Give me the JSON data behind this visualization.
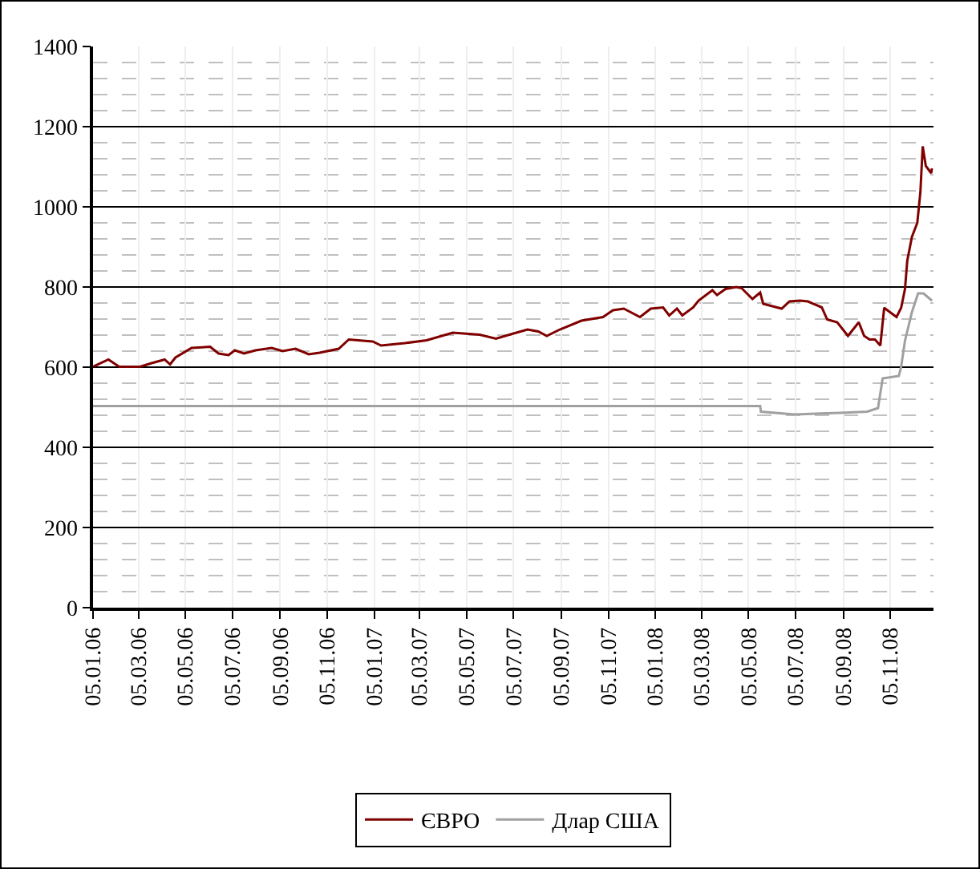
{
  "chart_data": {
    "type": "line",
    "legend": "bottom",
    "grid": true,
    "line_style": "solid",
    "marker": "none",
    "xlim": [
      "2006-01-05",
      "2008-12-31"
    ],
    "xticks": [
      {
        "value": "2006-01-05",
        "label": "05.01.06"
      },
      {
        "value": "2006-03-05",
        "label": "05.03.06"
      },
      {
        "value": "2006-05-05",
        "label": "05.05.06"
      },
      {
        "value": "2006-07-05",
        "label": "05.07.06"
      },
      {
        "value": "2006-09-05",
        "label": "05.09.06"
      },
      {
        "value": "2006-11-05",
        "label": "05.11.06"
      },
      {
        "value": "2007-01-05",
        "label": "05.01.07"
      },
      {
        "value": "2007-03-05",
        "label": "05.03.07"
      },
      {
        "value": "2007-05-05",
        "label": "05.05.07"
      },
      {
        "value": "2007-07-05",
        "label": "05.07.07"
      },
      {
        "value": "2007-09-05",
        "label": "05.09.07"
      },
      {
        "value": "2007-11-05",
        "label": "05.11.07"
      },
      {
        "value": "2008-01-05",
        "label": "05.01.08"
      },
      {
        "value": "2008-03-05",
        "label": "05.03.08"
      },
      {
        "value": "2008-05-05",
        "label": "05.05.08"
      },
      {
        "value": "2008-07-05",
        "label": "05.07.08"
      },
      {
        "value": "2008-09-05",
        "label": "05.09.08"
      },
      {
        "value": "2008-11-05",
        "label": "05.11.08"
      }
    ],
    "ylim": [
      0,
      1400
    ],
    "yticks": [
      0,
      200,
      400,
      600,
      800,
      1000,
      1200,
      1400
    ],
    "series": [
      {
        "name": "ЄВРО",
        "color": "#800000",
        "x": [
          "2006-01-05",
          "2006-01-25",
          "2006-02-08",
          "2006-03-07",
          "2006-03-22",
          "2006-04-08",
          "2006-04-15",
          "2006-04-22",
          "2006-05-13",
          "2006-06-06",
          "2006-06-17",
          "2006-06-30",
          "2006-07-08",
          "2006-07-20",
          "2006-08-04",
          "2006-08-25",
          "2006-09-08",
          "2006-09-25",
          "2006-10-12",
          "2006-10-26",
          "2006-11-20",
          "2006-12-03",
          "2007-01-03",
          "2007-01-14",
          "2007-02-14",
          "2007-03-14",
          "2007-04-17",
          "2007-05-22",
          "2007-06-12",
          "2007-07-03",
          "2007-07-23",
          "2007-08-06",
          "2007-08-17",
          "2007-09-03",
          "2007-10-01",
          "2007-10-29",
          "2007-11-11",
          "2007-11-25",
          "2007-12-16",
          "2007-12-30",
          "2008-01-15",
          "2008-01-23",
          "2008-02-02",
          "2008-02-09",
          "2008-02-23",
          "2008-03-01",
          "2008-03-19",
          "2008-03-25",
          "2008-04-05",
          "2008-04-19",
          "2008-04-26",
          "2008-05-10",
          "2008-05-20",
          "2008-05-24",
          "2008-06-07",
          "2008-06-17",
          "2008-06-27",
          "2008-07-11",
          "2008-07-21",
          "2008-08-08",
          "2008-08-15",
          "2008-08-28",
          "2008-09-11",
          "2008-09-25",
          "2008-10-02",
          "2008-10-09",
          "2008-10-16",
          "2008-10-23",
          "2008-10-28",
          "2008-11-13",
          "2008-11-19",
          "2008-11-24",
          "2008-11-27",
          "2008-12-03",
          "2008-12-10",
          "2008-12-14",
          "2008-12-17",
          "2008-12-21",
          "2008-12-28",
          "2008-12-29"
        ],
        "values": [
          601,
          619,
          601,
          601,
          610,
          619,
          607,
          624,
          648,
          651,
          634,
          630,
          642,
          634,
          642,
          648,
          640,
          646,
          632,
          636,
          646,
          669,
          664,
          654,
          660,
          667,
          686,
          681,
          671,
          683,
          694,
          689,
          678,
          694,
          716,
          725,
          742,
          746,
          725,
          746,
          749,
          729,
          746,
          729,
          749,
          766,
          792,
          780,
          795,
          800,
          797,
          770,
          786,
          758,
          751,
          746,
          764,
          766,
          764,
          749,
          719,
          712,
          678,
          712,
          678,
          669,
          669,
          654,
          748,
          725,
          748,
          795,
          866,
          925,
          960,
          1037,
          1151,
          1102,
          1084,
          1096
        ]
      },
      {
        "name": "Длар США",
        "color": "#a0a0a0",
        "x": [
          "2006-01-05",
          "2008-05-20",
          "2008-05-21",
          "2008-07-04",
          "2008-09-01",
          "2008-10-06",
          "2008-10-20",
          "2008-10-26",
          "2008-11-16",
          "2008-11-19",
          "2008-11-24",
          "2008-12-03",
          "2008-12-11",
          "2008-12-18",
          "2008-12-29"
        ],
        "values": [
          503,
          503,
          489,
          482,
          486,
          489,
          498,
          572,
          578,
          601,
          666,
          737,
          784,
          784,
          766
        ]
      }
    ]
  }
}
